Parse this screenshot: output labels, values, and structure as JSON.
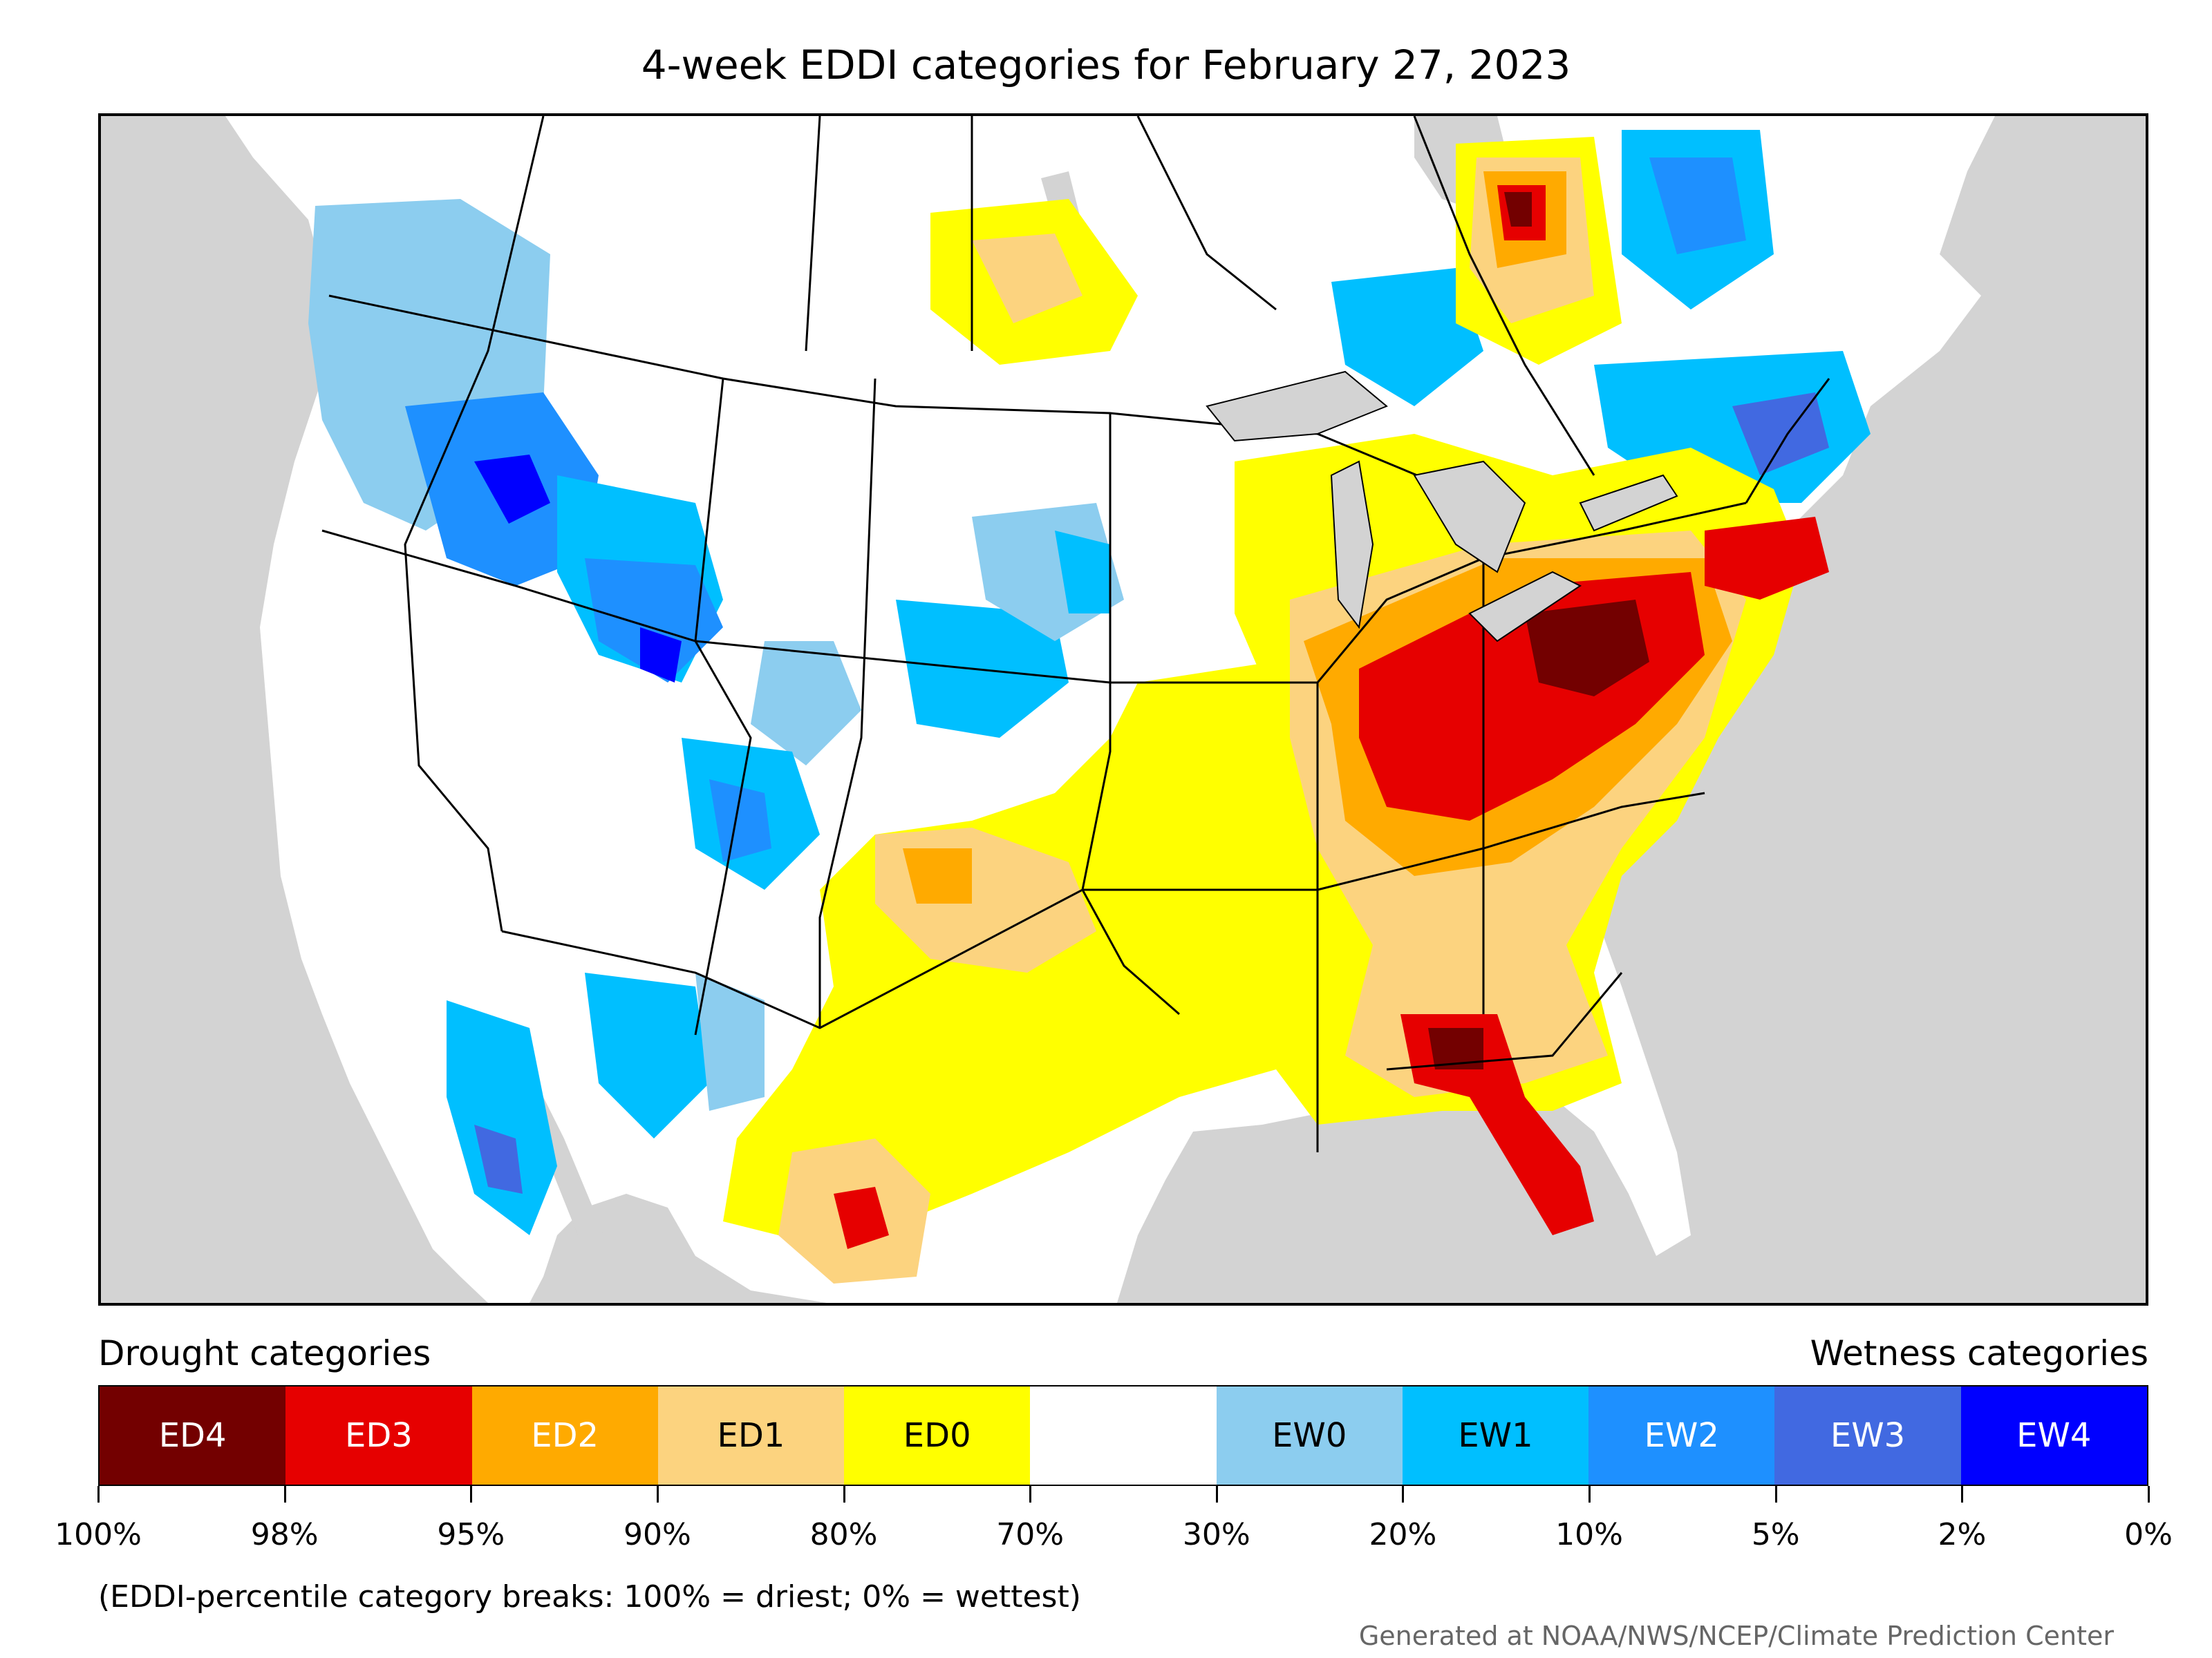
{
  "title": "4-week EDDI categories for February 27, 2023",
  "legend": {
    "drought_heading": "Drought categories",
    "wetness_heading": "Wetness categories",
    "categories": [
      {
        "label": "ED4",
        "color": "#730000",
        "text_color": "#ffffff"
      },
      {
        "label": "ED3",
        "color": "#e60000",
        "text_color": "#ffffff"
      },
      {
        "label": "ED2",
        "color": "#ffaa00",
        "text_color": "#ffffff"
      },
      {
        "label": "ED1",
        "color": "#fcd37f",
        "text_color": "#000000"
      },
      {
        "label": "ED0",
        "color": "#ffff00",
        "text_color": "#000000"
      },
      {
        "label": "",
        "color": "#ffffff",
        "text_color": "#000000"
      },
      {
        "label": "EW0",
        "color": "#8ccdef",
        "text_color": "#000000"
      },
      {
        "label": "EW1",
        "color": "#00bfff",
        "text_color": "#000000"
      },
      {
        "label": "EW2",
        "color": "#1e90ff",
        "text_color": "#ffffff"
      },
      {
        "label": "EW3",
        "color": "#4169e1",
        "text_color": "#ffffff"
      },
      {
        "label": "EW4",
        "color": "#0000ff",
        "text_color": "#ffffff"
      }
    ],
    "breaks": [
      "100%",
      "98%",
      "95%",
      "90%",
      "80%",
      "70%",
      "30%",
      "20%",
      "10%",
      "5%",
      "2%",
      "0%"
    ]
  },
  "note": "(EDDI-percentile category breaks: 100% = driest; 0% = wettest)",
  "credit": "Generated at NOAA/NWS/NCEP/Climate Prediction Center",
  "map": {
    "land_color": "#ffffff",
    "water_color": "#d3d3d3",
    "border_color": "#000000"
  }
}
